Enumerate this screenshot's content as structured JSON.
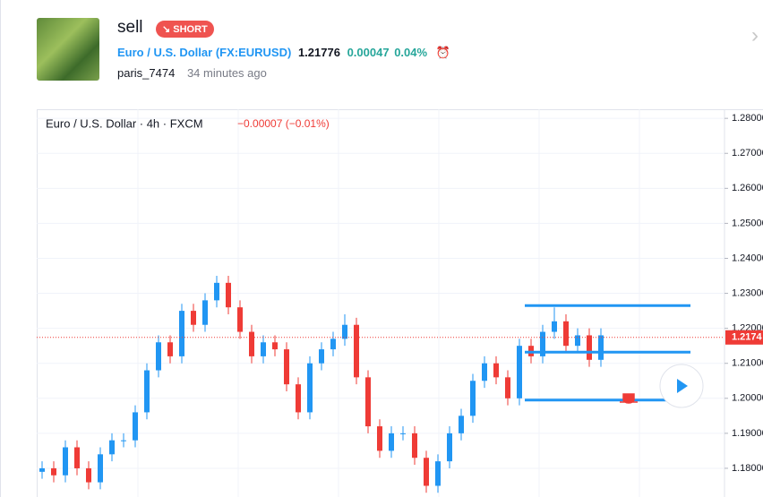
{
  "header": {
    "title": "sell",
    "badge": "SHORT",
    "symbol_name": "Euro / U.S. Dollar",
    "symbol_code": "(FX:EURUSD)",
    "price": "1.21776",
    "change": "0.00047",
    "change_pct": "0.04%",
    "author": "paris_7474",
    "time": "34 minutes ago"
  },
  "chart_data": {
    "type": "candlestick",
    "title": "Euro / U.S. Dollar · 4h · FXCM",
    "subtitle": "−0.00007 (−0.01%)",
    "up_color": "#2196f3",
    "down_color": "#ef3b36",
    "grid": true,
    "ylim": [
      1.1718,
      1.2826
    ],
    "yticks": [
      {
        "value": 1.28,
        "label": "1.28000"
      },
      {
        "value": 1.27,
        "label": "1.27000"
      },
      {
        "value": 1.26,
        "label": "1.26000"
      },
      {
        "value": 1.25,
        "label": "1.25000"
      },
      {
        "value": 1.24,
        "label": "1.24000"
      },
      {
        "value": 1.23,
        "label": "1.23000"
      },
      {
        "value": 1.22,
        "label": "1.22000"
      },
      {
        "value": 1.21,
        "label": "1.21000"
      },
      {
        "value": 1.2,
        "label": "1.20000"
      },
      {
        "value": 1.19,
        "label": "1.19000"
      },
      {
        "value": 1.18,
        "label": "1.18000"
      }
    ],
    "open": [
      1.179,
      1.18,
      1.178,
      1.186,
      1.18,
      1.176,
      1.184,
      1.188,
      1.188,
      1.196,
      1.208,
      1.216,
      1.212,
      1.225,
      1.221,
      1.228,
      1.233,
      1.226,
      1.219,
      1.212,
      1.216,
      1.214,
      1.204,
      1.196,
      1.21,
      1.214,
      1.217,
      1.221,
      1.206,
      1.192,
      1.185,
      1.19,
      1.19,
      1.183,
      1.175,
      1.182,
      1.19,
      1.195,
      1.205,
      1.21,
      1.206,
      1.2,
      1.215,
      1.212,
      1.219,
      1.222,
      1.215,
      1.218,
      1.211
    ],
    "high": [
      1.182,
      1.182,
      1.188,
      1.188,
      1.182,
      1.186,
      1.19,
      1.19,
      1.198,
      1.21,
      1.218,
      1.218,
      1.227,
      1.227,
      1.23,
      1.235,
      1.235,
      1.228,
      1.221,
      1.218,
      1.218,
      1.216,
      1.206,
      1.212,
      1.216,
      1.219,
      1.224,
      1.223,
      1.208,
      1.194,
      1.192,
      1.192,
      1.192,
      1.185,
      1.184,
      1.192,
      1.197,
      1.207,
      1.212,
      1.212,
      1.208,
      1.217,
      1.217,
      1.221,
      1.226,
      1.224,
      1.22,
      1.22,
      1.22
    ],
    "low": [
      1.177,
      1.176,
      1.176,
      1.178,
      1.174,
      1.174,
      1.182,
      1.186,
      1.186,
      1.194,
      1.206,
      1.21,
      1.21,
      1.219,
      1.219,
      1.226,
      1.224,
      1.217,
      1.21,
      1.21,
      1.212,
      1.202,
      1.194,
      1.194,
      1.208,
      1.212,
      1.215,
      1.204,
      1.19,
      1.183,
      1.183,
      1.188,
      1.181,
      1.173,
      1.173,
      1.18,
      1.188,
      1.193,
      1.203,
      1.204,
      1.198,
      1.198,
      1.21,
      1.21,
      1.217,
      1.213,
      1.213,
      1.209,
      1.209
    ],
    "close": [
      1.18,
      1.178,
      1.186,
      1.18,
      1.176,
      1.184,
      1.188,
      1.188,
      1.196,
      1.208,
      1.216,
      1.212,
      1.225,
      1.221,
      1.228,
      1.233,
      1.226,
      1.219,
      1.212,
      1.216,
      1.214,
      1.204,
      1.196,
      1.21,
      1.214,
      1.217,
      1.221,
      1.206,
      1.192,
      1.185,
      1.19,
      1.19,
      1.183,
      1.175,
      1.182,
      1.19,
      1.195,
      1.205,
      1.21,
      1.206,
      1.2,
      1.215,
      1.212,
      1.219,
      1.222,
      1.215,
      1.218,
      1.211,
      1.218
    ],
    "levels": [
      1.2265,
      1.2132,
      1.1995
    ],
    "level_color": "#2196f3",
    "last_price": 1.2174,
    "last_price_color": "#ef3b36"
  }
}
